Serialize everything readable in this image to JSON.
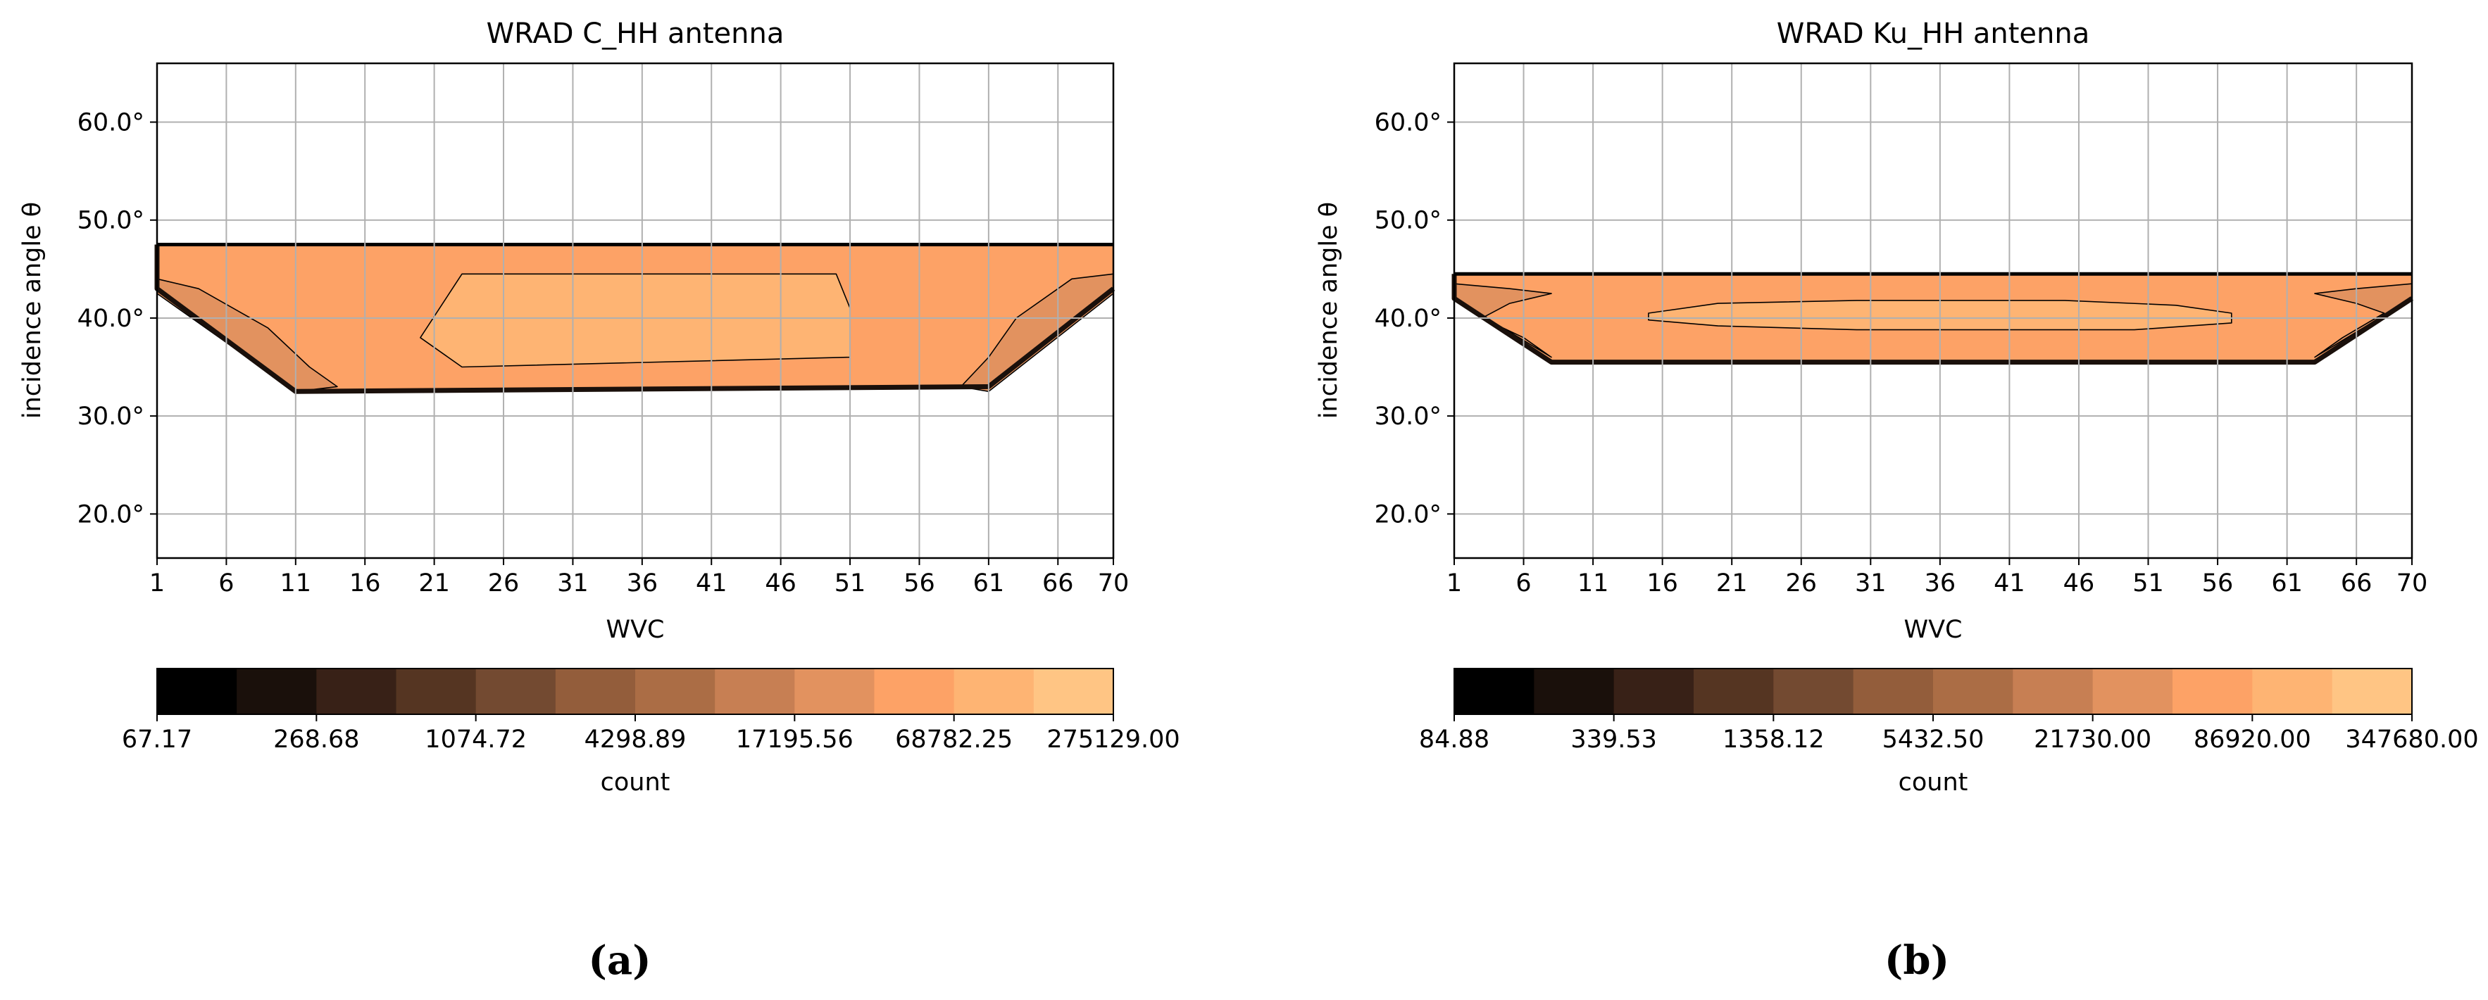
{
  "palette": [
    "#000000",
    "#1a100b",
    "#382117",
    "#553522",
    "#734a31",
    "#935d3b",
    "#ab6d45",
    "#c77f53",
    "#e2925f",
    "#fda266",
    "#feb473",
    "#ffc584"
  ],
  "chart_data": [
    {
      "type": "contour",
      "title": "WRAD C_HH antenna",
      "xlabel": "WVC",
      "ylabel": "incidence angle θ",
      "x_ticks": [
        1,
        6,
        11,
        16,
        21,
        26,
        31,
        36,
        41,
        46,
        51,
        56,
        61,
        66,
        70
      ],
      "xlim": [
        1,
        70
      ],
      "ylim": [
        15.5,
        66
      ],
      "y_ticks": [
        20,
        30,
        40,
        50,
        60
      ],
      "y_tick_labels": [
        "20.0°",
        "30.0°",
        "40.0°",
        "50.0°",
        "60.0°"
      ],
      "grid": true,
      "colorbar": {
        "label": "count",
        "levels": [
          67.17,
          134.34,
          268.68,
          537.36,
          1074.72,
          2149.44,
          4298.89,
          8597.78,
          17195.56,
          34391.12,
          68782.25,
          137564.5,
          275129.0
        ],
        "tick_labels": [
          "67.17",
          "268.68",
          "1074.72",
          "4298.89",
          "17195.56",
          "68782.25",
          "275129.00"
        ]
      },
      "regions": [
        {
          "level": 9,
          "points": [
            [
              1,
              47.5
            ],
            [
              70,
              47.5
            ],
            [
              70,
              43
            ],
            [
              61,
              33
            ],
            [
              11,
              32.5
            ],
            [
              1,
              43
            ]
          ]
        },
        {
          "level": 10,
          "points": [
            [
              23,
              44.5
            ],
            [
              50,
              44.5
            ],
            [
              51,
              41
            ],
            [
              51,
              36
            ],
            [
              23,
              35
            ],
            [
              20,
              38
            ]
          ]
        },
        {
          "level": 8,
          "points": [
            [
              1,
              47.5
            ],
            [
              1,
              44
            ],
            [
              4,
              43
            ],
            [
              9,
              39
            ],
            [
              12,
              35
            ],
            [
              14,
              33
            ],
            [
              11,
              32.5
            ],
            [
              1,
              42.5
            ]
          ]
        },
        {
          "level": 8,
          "points": [
            [
              70,
              47.5
            ],
            [
              70,
              44.5
            ],
            [
              67,
              44
            ],
            [
              63,
              40
            ],
            [
              61,
              36
            ],
            [
              59,
              33
            ],
            [
              61,
              32.5
            ],
            [
              70,
              42.5
            ]
          ]
        }
      ],
      "subfigure_label": "(a)"
    },
    {
      "type": "contour",
      "title": "WRAD Ku_HH antenna",
      "xlabel": "WVC",
      "ylabel": "incidence angle θ",
      "x_ticks": [
        1,
        6,
        11,
        16,
        21,
        26,
        31,
        36,
        41,
        46,
        51,
        56,
        61,
        66,
        70
      ],
      "xlim": [
        1,
        70
      ],
      "ylim": [
        15.5,
        66
      ],
      "y_ticks": [
        20,
        30,
        40,
        50,
        60
      ],
      "y_tick_labels": [
        "20.0°",
        "30.0°",
        "40.0°",
        "50.0°",
        "60.0°"
      ],
      "grid": true,
      "colorbar": {
        "label": "count",
        "levels": [
          84.88,
          169.76,
          339.53,
          679.06,
          1358.12,
          2716.25,
          5432.5,
          10865.0,
          21730.0,
          43460.0,
          86920.0,
          173840.0,
          347680.0
        ],
        "tick_labels": [
          "84.88",
          "339.53",
          "1358.12",
          "5432.50",
          "21730.00",
          "86920.00",
          "347680.00"
        ]
      },
      "regions": [
        {
          "level": 9,
          "points": [
            [
              1,
              44.5
            ],
            [
              70,
              44.5
            ],
            [
              70,
              42
            ],
            [
              63,
              35.5
            ],
            [
              8,
              35.5
            ],
            [
              1,
              42
            ]
          ]
        },
        {
          "level": 10,
          "points": [
            [
              15,
              40.5
            ],
            [
              20,
              41.5
            ],
            [
              30,
              41.8
            ],
            [
              45,
              41.8
            ],
            [
              53,
              41.3
            ],
            [
              57,
              40.5
            ],
            [
              57,
              39.5
            ],
            [
              50,
              38.8
            ],
            [
              30,
              38.8
            ],
            [
              20,
              39.2
            ],
            [
              15,
              39.8
            ]
          ]
        },
        {
          "level": 8,
          "points": [
            [
              1,
              44.5
            ],
            [
              1,
              43.5
            ],
            [
              5,
              43
            ],
            [
              8,
              42.5
            ],
            [
              5,
              41.5
            ],
            [
              3,
              40
            ],
            [
              6,
              38
            ],
            [
              8,
              36
            ],
            [
              1,
              42
            ]
          ]
        },
        {
          "level": 8,
          "points": [
            [
              70,
              44.5
            ],
            [
              70,
              43.5
            ],
            [
              66,
              43
            ],
            [
              63,
              42.5
            ],
            [
              66,
              41.5
            ],
            [
              68,
              40.5
            ],
            [
              65,
              38
            ],
            [
              63,
              36
            ],
            [
              70,
              42
            ]
          ]
        }
      ],
      "subfigure_label": "(b)"
    }
  ]
}
